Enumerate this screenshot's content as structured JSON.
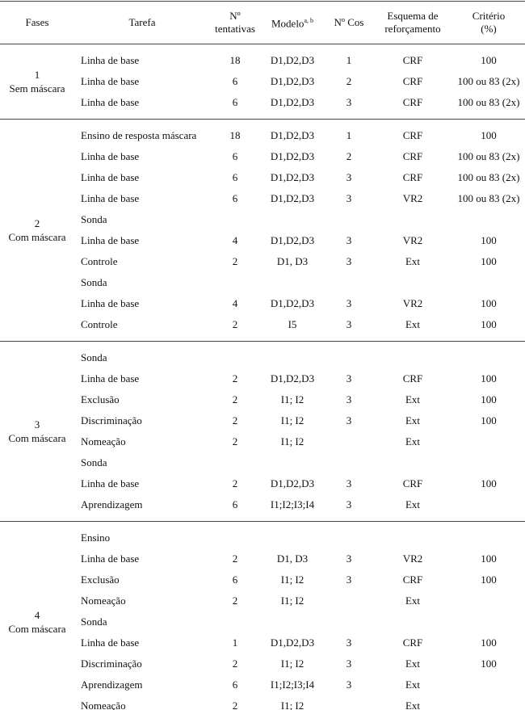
{
  "table": {
    "header": [
      {
        "lines": [
          "Fases"
        ]
      },
      {
        "lines": [
          "Tarefa"
        ]
      },
      {
        "lines": [
          "Nº",
          "tentativas"
        ]
      },
      {
        "lines": [
          "Modelo"
        ],
        "sup": "a, b"
      },
      {
        "lines": [
          "Nº Cos"
        ]
      },
      {
        "lines": [
          "Esquema de",
          "reforçamento"
        ]
      },
      {
        "lines": [
          "Critério",
          "(%)"
        ]
      }
    ],
    "phases": [
      {
        "label": [
          "1",
          "Sem máscara"
        ],
        "rows": [
          [
            "Linha de base",
            "18",
            "D1,D2,D3",
            "1",
            "CRF",
            "100"
          ],
          [
            "Linha de base",
            "6",
            "D1,D2,D3",
            "2",
            "CRF",
            "100 ou 83 (2x)"
          ],
          [
            "Linha de base",
            "6",
            "D1,D2,D3",
            "3",
            "CRF",
            "100 ou 83 (2x)"
          ]
        ]
      },
      {
        "label": [
          "2",
          "Com máscara"
        ],
        "rows": [
          [
            "Ensino de resposta máscara",
            "18",
            "D1,D2,D3",
            "1",
            "CRF",
            "100"
          ],
          [
            "Linha de base",
            "6",
            "D1,D2,D3",
            "2",
            "CRF",
            "100 ou 83 (2x)"
          ],
          [
            "Linha de base",
            "6",
            "D1,D2,D3",
            "3",
            "CRF",
            "100 ou 83 (2x)"
          ],
          [
            "Linha de base",
            "6",
            "D1,D2,D3",
            "3",
            "VR2",
            "100 ou 83 (2x)"
          ],
          [
            "Sonda",
            null,
            null,
            null,
            null,
            null
          ],
          [
            "Linha de base",
            "4",
            "D1,D2,D3",
            "3",
            "VR2",
            "100"
          ],
          [
            "Controle",
            "2",
            "D1, D3",
            "3",
            "Ext",
            "100"
          ],
          [
            "Sonda",
            null,
            null,
            null,
            null,
            null
          ],
          [
            "Linha de base",
            "4",
            "D1,D2,D3",
            "3",
            "VR2",
            "100"
          ],
          [
            "Controle",
            "2",
            "I5",
            "3",
            "Ext",
            "100"
          ]
        ]
      },
      {
        "label": [
          "3",
          "Com máscara"
        ],
        "rows": [
          [
            "Sonda",
            null,
            null,
            null,
            null,
            null
          ],
          [
            "Linha de base",
            "2",
            "D1,D2,D3",
            "3",
            "CRF",
            "100"
          ],
          [
            "Exclusão",
            "2",
            "I1; I2",
            "3",
            "Ext",
            "100"
          ],
          [
            "Discriminação",
            "2",
            "I1; I2",
            "3",
            "Ext",
            "100"
          ],
          [
            "Nomeação",
            "2",
            "I1; I2",
            null,
            "Ext",
            null
          ],
          [
            "Sonda",
            null,
            null,
            null,
            null,
            null
          ],
          [
            "Linha de base",
            "2",
            "D1,D2,D3",
            "3",
            "CRF",
            "100"
          ],
          [
            "Aprendizagem",
            "6",
            "I1;I2;I3;I4",
            "3",
            "Ext",
            null
          ]
        ]
      },
      {
        "label": [
          "4",
          "Com máscara"
        ],
        "rows": [
          [
            "Ensino",
            null,
            null,
            null,
            null,
            null
          ],
          [
            "Linha de base",
            "2",
            "D1, D3",
            "3",
            "VR2",
            "100"
          ],
          [
            "Exclusão",
            "6",
            "I1; I2",
            "3",
            "CRF",
            "100"
          ],
          [
            "Nomeação",
            "2",
            "I1; I2",
            null,
            "Ext",
            null
          ],
          [
            "Sonda",
            null,
            null,
            null,
            null,
            null
          ],
          [
            "Linha de base",
            "1",
            "D1,D2,D3",
            "3",
            "CRF",
            "100"
          ],
          [
            "Discriminação",
            "2",
            "I1; I2",
            "3",
            "Ext",
            "100"
          ],
          [
            "Aprendizagem",
            "6",
            "I1;I2;I3;I4",
            "3",
            "Ext",
            null
          ],
          [
            "Nomeação",
            "2",
            "I1; I2",
            null,
            "Ext",
            null
          ]
        ]
      }
    ]
  }
}
